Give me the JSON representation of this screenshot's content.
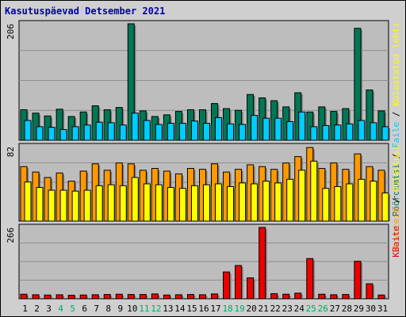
{
  "title": "Kasutuspäevad Detsember 2021",
  "colors": {
    "background": "#cfcfcf",
    "panel": "#bdbdbd",
    "title": "#0000aa",
    "pages": "#007755",
    "files": "#00ccff",
    "visits": "#ff9900",
    "hits": "#ffff00",
    "kbytes": "#ee0000",
    "weekend": "#00aa66"
  },
  "chart_data": [
    {
      "type": "bar",
      "panel": "top",
      "ymax_label": "206",
      "ylim": [
        0,
        206
      ],
      "legend": {
        "pages": "Pöördumisi",
        "sep1": " / ",
        "files": "Faile",
        "sep2": " / ",
        "hits": "Külastatud lehti"
      },
      "categories": [
        "1",
        "2",
        "3",
        "4",
        "5",
        "6",
        "7",
        "8",
        "9",
        "10",
        "11",
        "12",
        "13",
        "14",
        "15",
        "16",
        "17",
        "18",
        "19",
        "20",
        "21",
        "22",
        "23",
        "24",
        "25",
        "26",
        "27",
        "28",
        "29",
        "30",
        "31"
      ],
      "weekend_days": [
        "4",
        "5",
        "11",
        "12",
        "18",
        "19",
        "25",
        "26"
      ],
      "series": [
        {
          "name": "Pöördumisi",
          "key": "pages",
          "values": [
            54,
            48,
            43,
            55,
            42,
            50,
            61,
            54,
            58,
            206,
            52,
            42,
            45,
            51,
            54,
            54,
            65,
            56,
            53,
            81,
            75,
            70,
            59,
            84,
            50,
            59,
            51,
            56,
            198,
            89,
            52
          ]
        },
        {
          "name": "Faile",
          "key": "files",
          "values": [
            35,
            24,
            23,
            19,
            24,
            27,
            32,
            31,
            27,
            48,
            35,
            28,
            30,
            30,
            34,
            30,
            40,
            29,
            28,
            44,
            39,
            39,
            33,
            50,
            24,
            26,
            27,
            29,
            35,
            31,
            24
          ]
        }
      ]
    },
    {
      "type": "bar",
      "panel": "middle",
      "ymax_label": "82",
      "ylim": [
        0,
        82
      ],
      "legend": {
        "visits": "Arvuteid",
        "sep": " / ",
        "hits": "Külastusi"
      },
      "categories": [
        "1",
        "2",
        "3",
        "4",
        "5",
        "6",
        "7",
        "8",
        "9",
        "10",
        "11",
        "12",
        "13",
        "14",
        "15",
        "16",
        "17",
        "18",
        "19",
        "20",
        "21",
        "22",
        "23",
        "24",
        "25",
        "26",
        "27",
        "28",
        "29",
        "30",
        "31"
      ],
      "series": [
        {
          "name": "Arvuteid",
          "key": "visits",
          "values": [
            60,
            54,
            48,
            53,
            44,
            55,
            63,
            56,
            64,
            63,
            56,
            58,
            55,
            52,
            58,
            57,
            63,
            54,
            57,
            62,
            60,
            57,
            64,
            71,
            81,
            58,
            64,
            57,
            74,
            60,
            56
          ]
        },
        {
          "name": "Külastusi",
          "key": "hits",
          "values": [
            43,
            37,
            34,
            34,
            33,
            34,
            39,
            40,
            39,
            48,
            41,
            40,
            37,
            36,
            39,
            40,
            41,
            38,
            42,
            41,
            44,
            42,
            46,
            56,
            66,
            36,
            38,
            41,
            46,
            44,
            31
          ]
        }
      ]
    },
    {
      "type": "bar",
      "panel": "bottom",
      "ymax_label": "266",
      "ylim": [
        0,
        266
      ],
      "legend": {
        "kbytes": "KBaite"
      },
      "categories": [
        "1",
        "2",
        "3",
        "4",
        "5",
        "6",
        "7",
        "8",
        "9",
        "10",
        "11",
        "12",
        "13",
        "14",
        "15",
        "16",
        "17",
        "18",
        "19",
        "20",
        "21",
        "22",
        "23",
        "24",
        "25",
        "26",
        "27",
        "28",
        "29",
        "30",
        "31"
      ],
      "series": [
        {
          "name": "KBaite",
          "key": "kbytes",
          "values": [
            17,
            15,
            14,
            15,
            13,
            14,
            15,
            16,
            17,
            16,
            16,
            18,
            14,
            15,
            16,
            15,
            18,
            100,
            124,
            78,
            266,
            19,
            17,
            21,
            150,
            17,
            15,
            16,
            140,
            56,
            14
          ]
        }
      ]
    }
  ]
}
